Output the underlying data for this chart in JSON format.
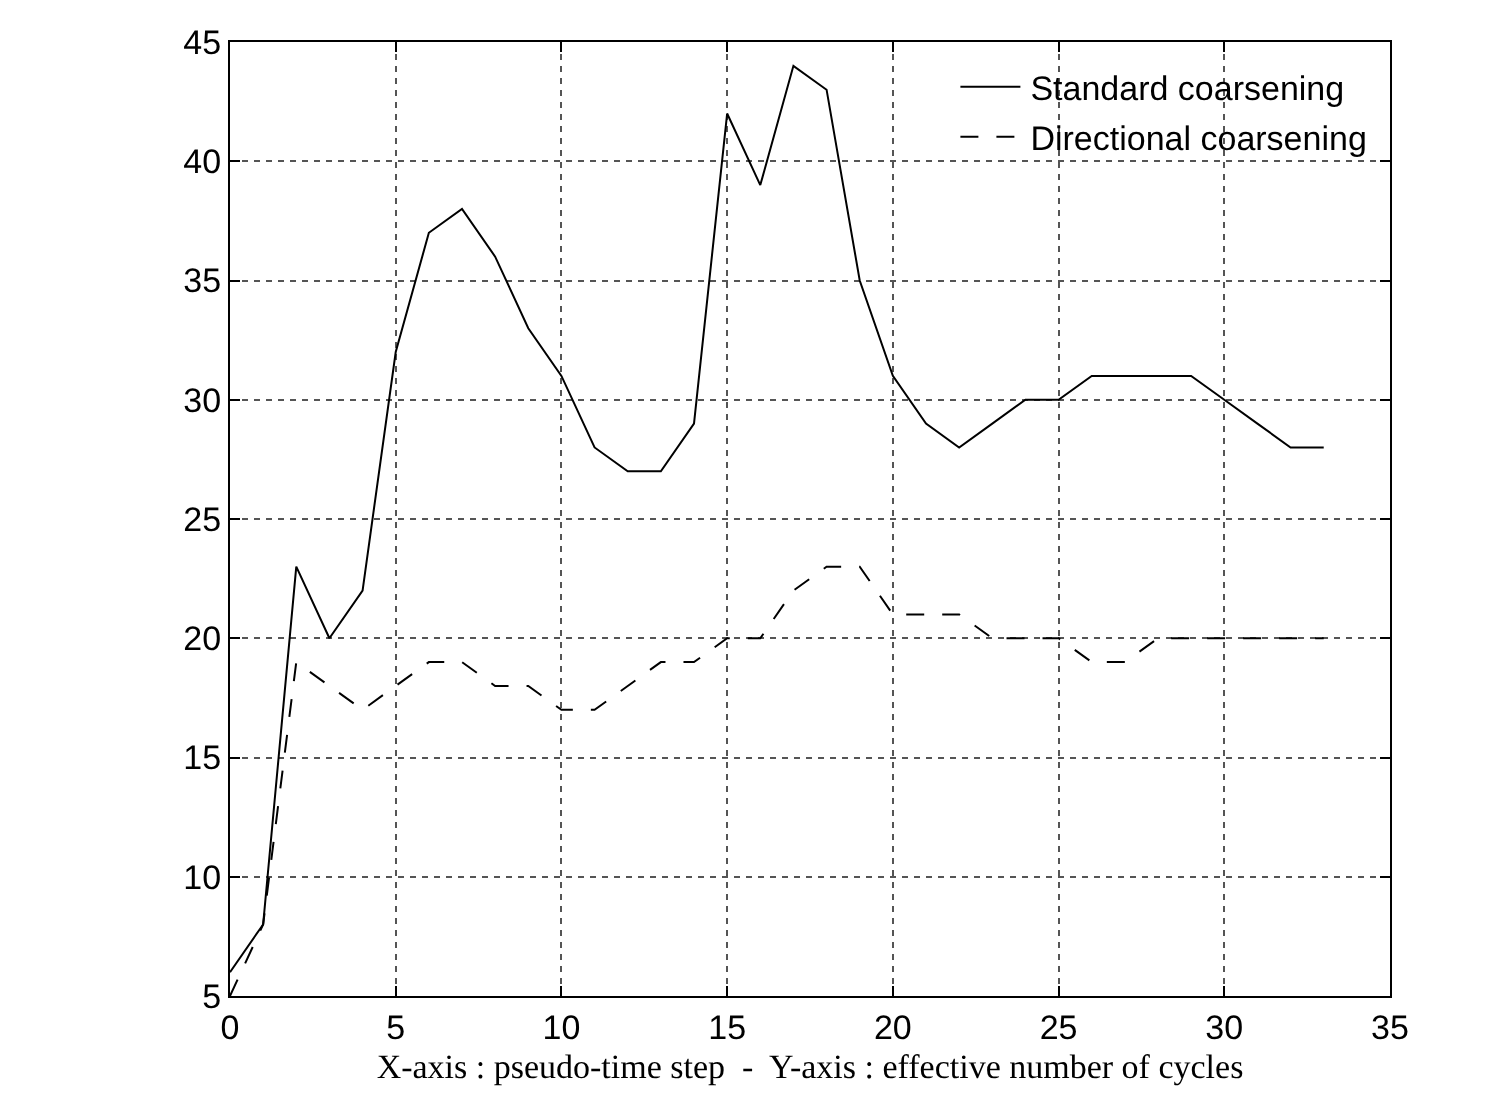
{
  "chart_data": {
    "type": "line",
    "xlabel": "X-axis : pseudo-time step  -  Y-axis : effective number of cycles",
    "x": [
      0,
      1,
      2,
      3,
      4,
      5,
      6,
      7,
      8,
      9,
      10,
      11,
      12,
      13,
      14,
      15,
      16,
      17,
      18,
      19,
      20,
      21,
      22,
      23,
      24,
      25,
      26,
      27,
      28,
      29,
      30,
      31,
      32,
      33
    ],
    "series": [
      {
        "name": "Standard coarsening",
        "color": "#000000",
        "line_style": "solid",
        "values": [
          6,
          8,
          23,
          20,
          22,
          32,
          37,
          38,
          36,
          33,
          31,
          28,
          27,
          27,
          29,
          42,
          39,
          44,
          43,
          35,
          31,
          29,
          28,
          29,
          30,
          30,
          31,
          31,
          31,
          31,
          30,
          29,
          28,
          28
        ]
      },
      {
        "name": "Directional coarsening",
        "color": "#000000",
        "line_style": "dashed",
        "values": [
          5,
          8,
          19,
          18,
          17,
          18,
          19,
          19,
          18,
          18,
          17,
          17,
          18,
          19,
          19,
          20,
          20,
          22,
          23,
          23,
          21,
          21,
          21,
          20,
          20,
          20,
          19,
          19,
          20,
          20,
          20,
          20,
          20,
          20
        ]
      }
    ],
    "xlim": [
      0,
      35
    ],
    "xticks": [
      0,
      5,
      10,
      15,
      20,
      25,
      30,
      35
    ],
    "ylim": [
      5,
      45
    ],
    "yticks": [
      5,
      10,
      15,
      20,
      25,
      30,
      35,
      40,
      45
    ],
    "grid": true,
    "legend": "top right",
    "marker": "none"
  }
}
